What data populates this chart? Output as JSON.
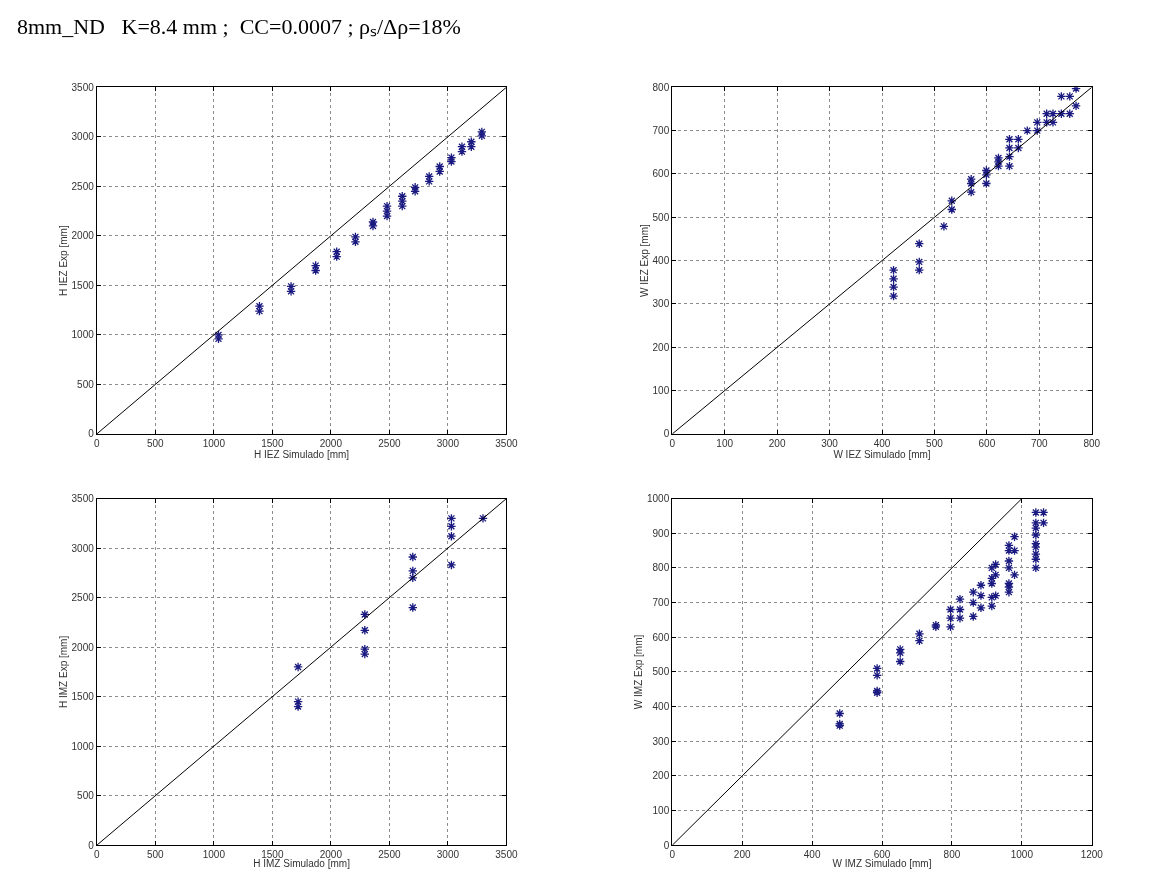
{
  "chart_data": [
    {
      "type": "scatter",
      "title": "8mm_ND   K=8.4 mm ;  CC=0.0007 ; ρₛ/Δρ=18%",
      "xlabel": "H IEZ Simulado [mm]",
      "ylabel": "H IEZ Exp [mm]",
      "xlim": [
        0,
        3500
      ],
      "ylim": [
        0,
        3500
      ],
      "xticks": [
        0,
        500,
        1000,
        1500,
        2000,
        2500,
        3000,
        3500
      ],
      "yticks": [
        0,
        500,
        1000,
        1500,
        2000,
        2500,
        3000,
        3500
      ],
      "grid": true,
      "series": [
        {
          "marker": "cross",
          "color": "#1a1a80",
          "x": [
            1040,
            1040,
            1390,
            1390,
            1660,
            1660,
            1870,
            1870,
            2050,
            2050,
            2210,
            2210,
            2360,
            2360,
            2480,
            2480,
            2480,
            2610,
            2610,
            2610,
            2720,
            2720,
            2840,
            2840,
            2930,
            2930,
            3030,
            3030,
            3120,
            3120,
            3200,
            3200,
            3290,
            3290
          ],
          "values": [
            1000,
            960,
            1290,
            1240,
            1490,
            1440,
            1700,
            1650,
            1840,
            1790,
            1990,
            1940,
            2140,
            2100,
            2300,
            2250,
            2200,
            2400,
            2350,
            2300,
            2490,
            2450,
            2600,
            2550,
            2700,
            2650,
            2790,
            2750,
            2900,
            2850,
            2950,
            2900,
            3050,
            3010
          ]
        },
        {
          "type": "line",
          "color": "#000000",
          "x": [
            0,
            3500
          ],
          "values": [
            0,
            3500
          ]
        }
      ]
    },
    {
      "type": "scatter",
      "xlabel": "W IEZ Simulado [mm]",
      "ylabel": "W IEZ Exp [mm]",
      "xlim": [
        0,
        800
      ],
      "ylim": [
        0,
        800
      ],
      "xticks": [
        0,
        100,
        200,
        300,
        400,
        500,
        600,
        700,
        800
      ],
      "yticks": [
        0,
        100,
        200,
        300,
        400,
        500,
        600,
        700,
        800
      ],
      "grid": true,
      "series": [
        {
          "marker": "cross",
          "color": "#1a1a80",
          "x": [
            422,
            422,
            422,
            422,
            471,
            471,
            471,
            518,
            533,
            533,
            570,
            570,
            570,
            599,
            599,
            599,
            622,
            622,
            622,
            643,
            643,
            643,
            643,
            660,
            660,
            677,
            696,
            696,
            714,
            714,
            726,
            726,
            742,
            742,
            758,
            758,
            770,
            770
          ],
          "values": [
            378,
            358,
            339,
            318,
            439,
            397,
            378,
            479,
            538,
            518,
            588,
            578,
            558,
            608,
            598,
            578,
            637,
            628,
            618,
            680,
            660,
            640,
            618,
            680,
            660,
            700,
            719,
            700,
            739,
            719,
            739,
            719,
            779,
            739,
            779,
            739,
            797,
            757
          ]
        },
        {
          "type": "line",
          "color": "#000000",
          "x": [
            0,
            800
          ],
          "values": [
            0,
            800
          ]
        }
      ]
    },
    {
      "type": "scatter",
      "xlabel": "H IMZ Simulado [mm]",
      "ylabel": "H IMZ Exp [mm]",
      "xlim": [
        0,
        3500
      ],
      "ylim": [
        0,
        3500
      ],
      "xticks": [
        0,
        500,
        1000,
        1500,
        2000,
        2500,
        3000,
        3500
      ],
      "yticks": [
        0,
        500,
        1000,
        1500,
        2000,
        2500,
        3000,
        3500
      ],
      "grid": true,
      "series": [
        {
          "marker": "cross",
          "color": "#1a1a80",
          "x": [
            1720,
            1720,
            1720,
            2290,
            2290,
            2290,
            2290,
            2700,
            2700,
            2700,
            2700,
            3030,
            3030,
            3030,
            3030,
            3300
          ],
          "values": [
            1800,
            1450,
            1400,
            2330,
            2170,
            1980,
            1930,
            2910,
            2770,
            2700,
            2400,
            3300,
            3220,
            3120,
            2830,
            3300
          ]
        },
        {
          "type": "line",
          "color": "#000000",
          "x": [
            0,
            3500
          ],
          "values": [
            0,
            3500
          ]
        }
      ]
    },
    {
      "type": "scatter",
      "xlabel": "W IMZ Simulado [mm]",
      "ylabel": "W IMZ Exp [mm]",
      "xlim": [
        0,
        1200
      ],
      "ylim": [
        0,
        1000
      ],
      "xticks": [
        0,
        200,
        400,
        600,
        800,
        1000,
        1200
      ],
      "yticks": [
        0,
        100,
        200,
        300,
        400,
        500,
        600,
        700,
        800,
        900,
        1000
      ],
      "grid": true,
      "series": [
        {
          "marker": "cross",
          "color": "#1a1a80",
          "x": [
            479,
            479,
            479,
            586,
            586,
            586,
            586,
            652,
            652,
            652,
            707,
            707,
            754,
            754,
            796,
            796,
            796,
            823,
            823,
            823,
            861,
            861,
            861,
            883,
            883,
            883,
            914,
            914,
            914,
            914,
            914,
            925,
            925,
            925,
            963,
            963,
            963,
            963,
            963,
            963,
            963,
            979,
            979,
            979,
            1040,
            1040,
            1040,
            1040,
            1040,
            1040,
            1040,
            1040,
            1040,
            1062,
            1062
          ],
          "values": [
            380,
            350,
            345,
            510,
            490,
            445,
            440,
            565,
            555,
            530,
            610,
            590,
            635,
            630,
            680,
            655,
            630,
            710,
            680,
            655,
            730,
            700,
            660,
            750,
            720,
            685,
            800,
            770,
            755,
            715,
            690,
            810,
            780,
            720,
            865,
            850,
            820,
            800,
            755,
            745,
            730,
            890,
            850,
            780,
            960,
            930,
            915,
            895,
            870,
            860,
            840,
            825,
            800,
            960,
            930
          ]
        },
        {
          "type": "line",
          "color": "#000000",
          "x": [
            0,
            1000
          ],
          "values": [
            0,
            1000
          ]
        }
      ]
    }
  ]
}
